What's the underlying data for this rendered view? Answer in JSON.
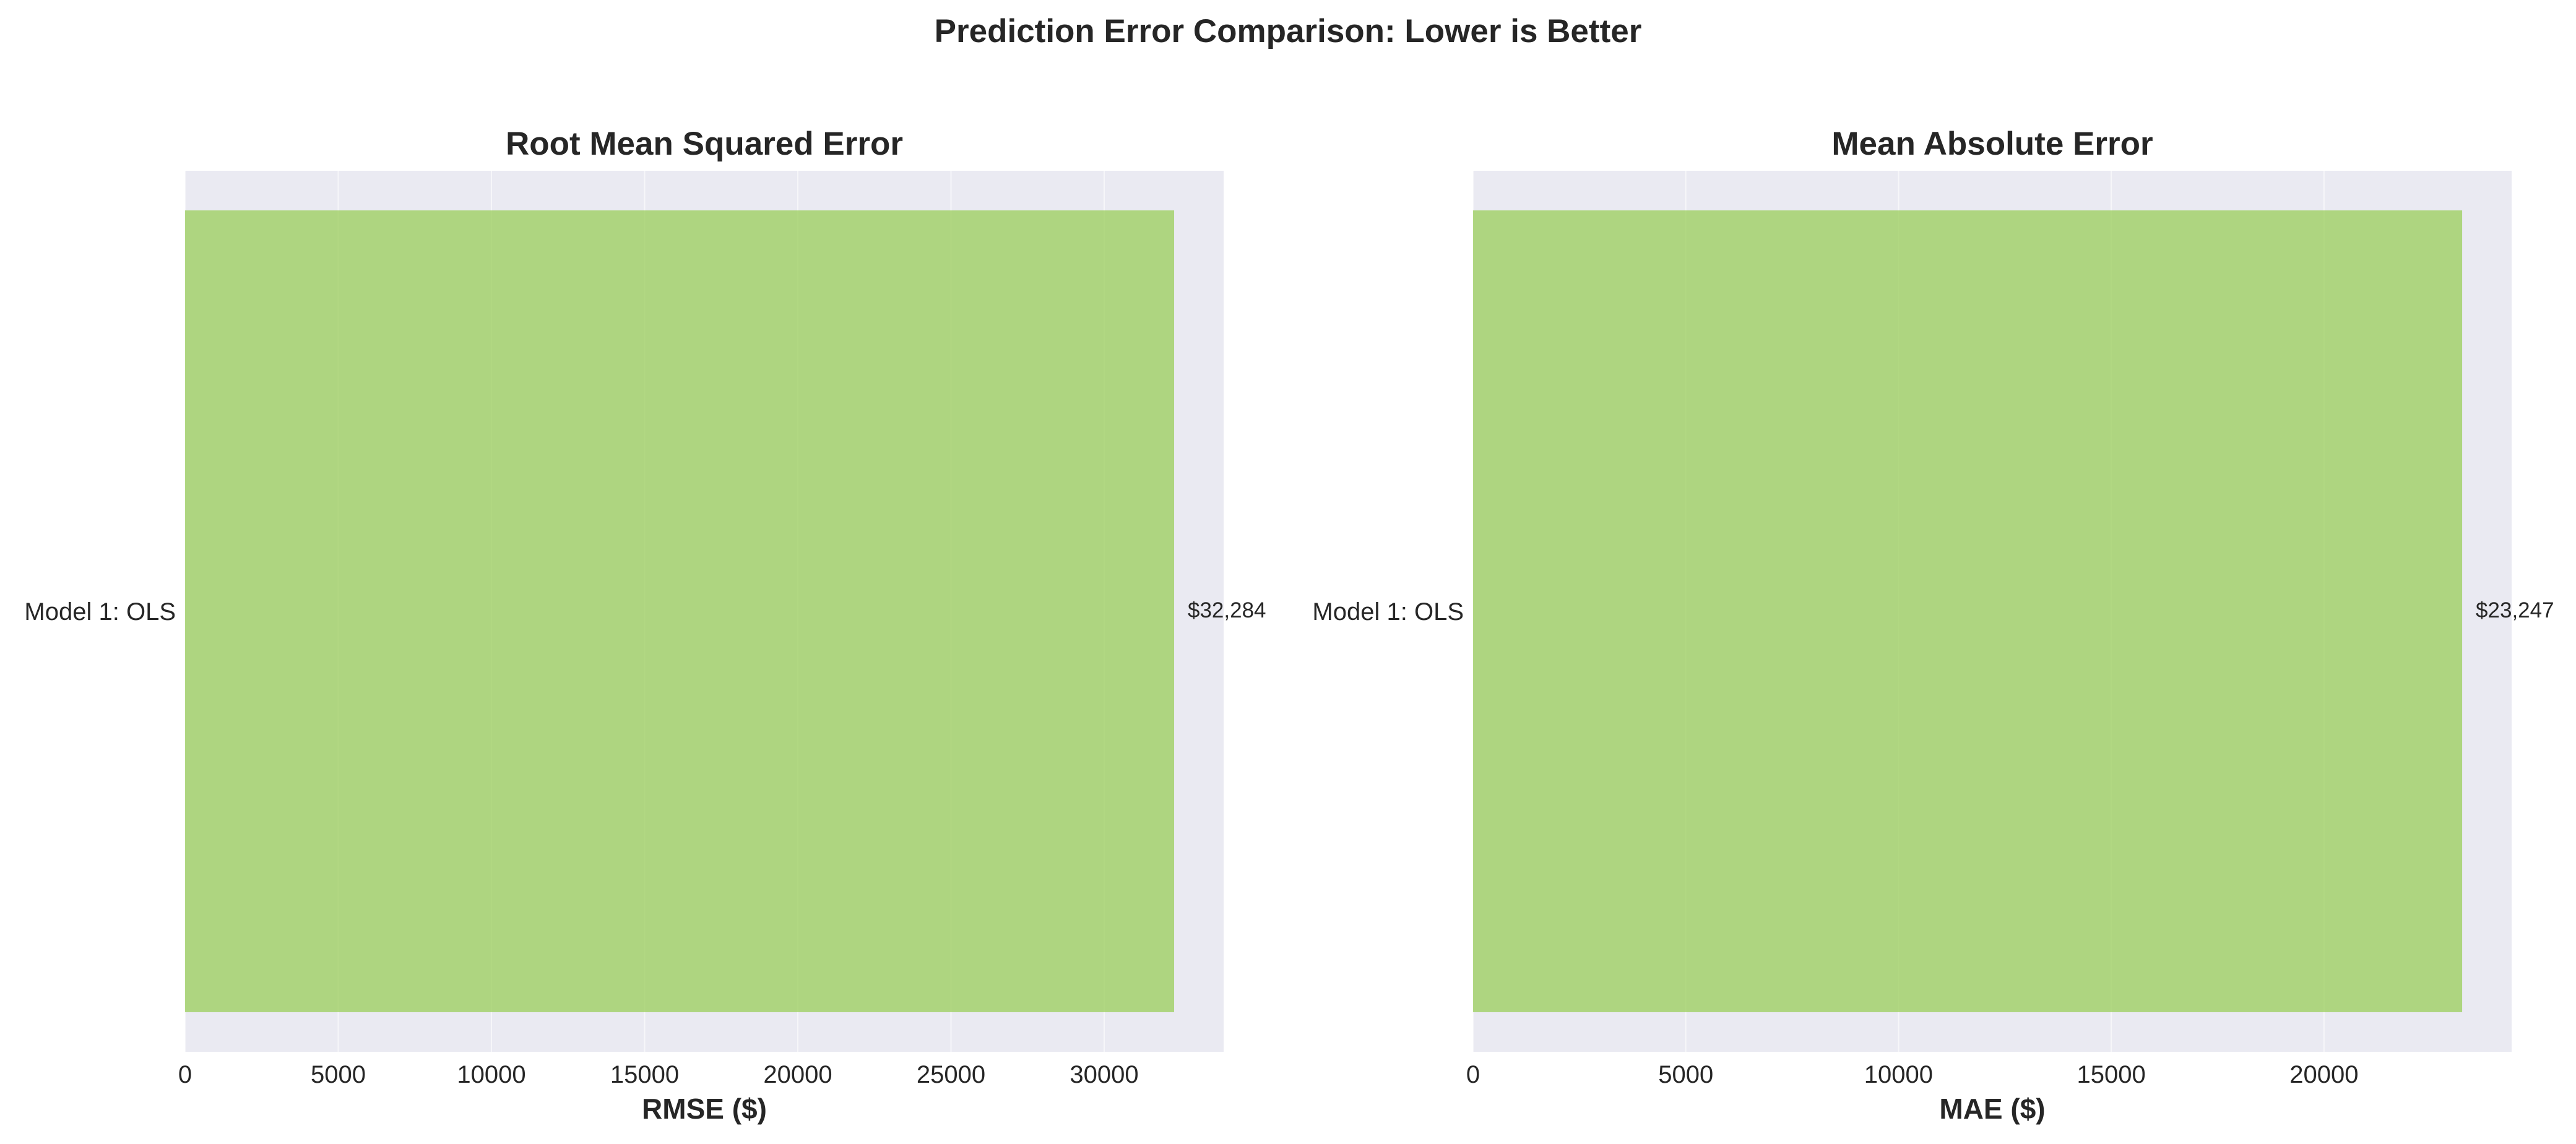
{
  "figure": {
    "title": "Prediction Error Comparison: Lower is Better"
  },
  "colors": {
    "bar": "#9acd5a",
    "plot_background": "#eaeaf2",
    "text": "#262626"
  },
  "chart_data": [
    {
      "type": "bar",
      "orientation": "horizontal",
      "title": "Root Mean Squared Error",
      "xlabel": "RMSE ($)",
      "ylabel": "",
      "categories": [
        "Model 1: OLS"
      ],
      "values": [
        32284
      ],
      "value_labels": [
        "$32,284"
      ],
      "xlim": [
        0,
        33900
      ],
      "xticks": [
        0,
        5000,
        10000,
        15000,
        20000,
        25000,
        30000
      ],
      "xtick_labels": [
        "0",
        "5000",
        "10000",
        "15000",
        "20000",
        "25000",
        "30000"
      ],
      "grid": true
    },
    {
      "type": "bar",
      "orientation": "horizontal",
      "title": "Mean Absolute Error",
      "xlabel": "MAE ($)",
      "ylabel": "",
      "categories": [
        "Model 1: OLS"
      ],
      "values": [
        23247
      ],
      "value_labels": [
        "$23,247"
      ],
      "xlim": [
        0,
        24410
      ],
      "xticks": [
        0,
        5000,
        10000,
        15000,
        20000
      ],
      "xtick_labels": [
        "0",
        "5000",
        "10000",
        "15000",
        "20000"
      ],
      "grid": true
    }
  ]
}
